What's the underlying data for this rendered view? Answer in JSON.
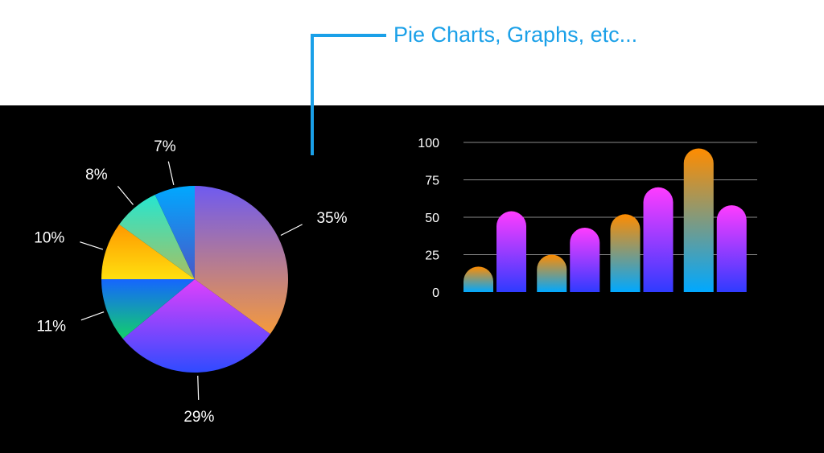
{
  "callout": {
    "label": "Pie Charts, Graphs, etc...",
    "color": "#1aa0e8"
  },
  "chart_data": [
    {
      "type": "pie",
      "values": [
        35,
        29,
        11,
        10,
        8,
        7
      ],
      "labels": [
        "35%",
        "29%",
        "11%",
        "10%",
        "8%",
        "7%"
      ],
      "start_angle_deg": 0,
      "direction": "clockwise",
      "gradients": [
        [
          "#6f5af0",
          "#f59a3c"
        ],
        [
          "#e040fb",
          "#2f4bff"
        ],
        [
          "#1565ff",
          "#12d06a"
        ],
        [
          "#ff9800",
          "#ffe00f"
        ],
        [
          "#26e6d0",
          "#a8c060"
        ],
        [
          "#00a8ff",
          "#4a58c8"
        ]
      ]
    },
    {
      "type": "bar",
      "ylim": [
        0,
        100
      ],
      "yticks": [
        0,
        25,
        50,
        75,
        100
      ],
      "grid": true,
      "series": [
        {
          "values": [
            17,
            25,
            52,
            96
          ],
          "gradient": [
            "#ff8c00",
            "#00a8ff"
          ]
        },
        {
          "values": [
            54,
            43,
            70,
            58
          ],
          "gradient": [
            "#ff3cff",
            "#2f3bff"
          ]
        }
      ]
    }
  ]
}
